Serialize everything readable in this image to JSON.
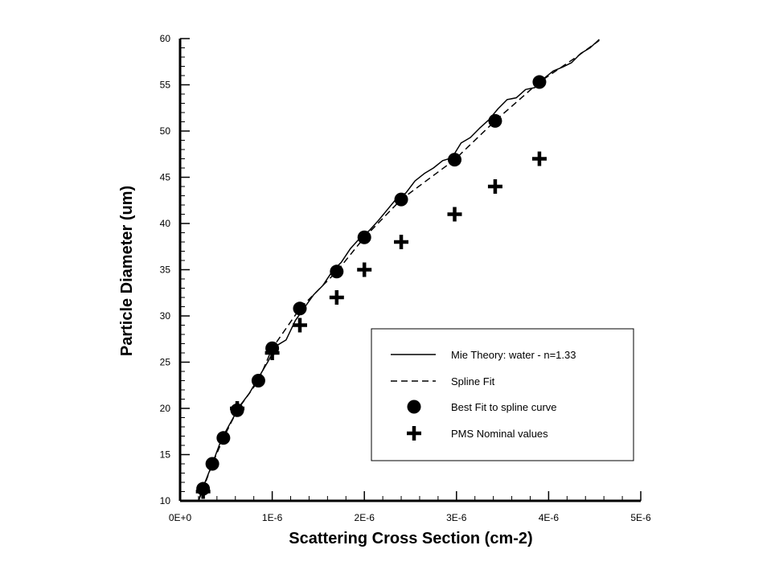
{
  "chart_data": {
    "type": "scatter",
    "xlabel": "Scattering Cross Section (cm-2)",
    "ylabel": "Particle Diameter (um)",
    "xlim": [
      0,
      5e-06
    ],
    "ylim": [
      10,
      60
    ],
    "x_ticks": [
      0,
      1e-06,
      2e-06,
      3e-06,
      4e-06,
      5e-06
    ],
    "x_tick_labels": [
      "0E+0",
      "1E-6",
      "2E-6",
      "3E-6",
      "4E-6",
      "5E-6"
    ],
    "y_ticks": [
      10,
      15,
      20,
      25,
      30,
      35,
      40,
      45,
      50,
      55,
      60
    ],
    "y_tick_labels": [
      "10",
      "15",
      "20",
      "25",
      "30",
      "35",
      "40",
      "45",
      "50",
      "55",
      "60"
    ],
    "grid": false,
    "legend_position": "bottom-right",
    "series": [
      {
        "name": "Mie Theory: water - n=1.33",
        "style": "solid-line",
        "x": [
          2e-07,
          2.5e-07,
          3.5e-07,
          4.5e-07,
          5.5e-07,
          6.5e-07,
          7.5e-07,
          8.5e-07,
          9.5e-07,
          1.05e-06,
          1.15e-06,
          1.25e-06,
          1.35e-06,
          1.45e-06,
          1.55e-06,
          1.65e-06,
          1.75e-06,
          1.85e-06,
          1.95e-06,
          2.05e-06,
          2.15e-06,
          2.25e-06,
          2.35e-06,
          2.45e-06,
          2.55e-06,
          2.65e-06,
          2.75e-06,
          2.85e-06,
          2.95e-06,
          3.05e-06,
          3.15e-06,
          3.25e-06,
          3.35e-06,
          3.45e-06,
          3.55e-06,
          3.65e-06,
          3.75e-06,
          3.85e-06,
          3.95e-06,
          4.05e-06,
          4.15e-06,
          4.25e-06,
          4.35e-06,
          4.45e-06,
          4.55e-06
        ],
        "y": [
          10.0,
          11.5,
          14.0,
          16.7,
          18.5,
          20.3,
          21.6,
          23.3,
          25.0,
          26.8,
          27.4,
          29.5,
          30.9,
          32.3,
          33.3,
          34.8,
          35.8,
          37.3,
          38.4,
          39.2,
          40.3,
          41.5,
          42.7,
          43.3,
          44.6,
          45.4,
          46.0,
          46.8,
          47.1,
          48.7,
          49.3,
          50.3,
          51.2,
          52.4,
          53.4,
          53.6,
          54.5,
          54.7,
          55.7,
          56.5,
          56.9,
          57.4,
          58.4,
          59.0,
          59.9
        ]
      },
      {
        "name": "Spline Fit",
        "style": "dashed-line",
        "x": [
          2e-07,
          2.5e-07,
          3.5e-07,
          4.7e-07,
          6.2e-07,
          8.5e-07,
          1e-06,
          1.3e-06,
          1.7e-06,
          2e-06,
          2.4e-06,
          2.98e-06,
          3.42e-06,
          3.9e-06,
          4.3e-06,
          4.55e-06
        ],
        "y": [
          10.0,
          11.3,
          14.0,
          16.8,
          19.8,
          23.0,
          26.5,
          30.8,
          34.8,
          38.5,
          42.6,
          46.9,
          51.1,
          55.3,
          58.0,
          59.8
        ]
      },
      {
        "name": "Best Fit to spline curve",
        "style": "filled-circle",
        "x": [
          2.5e-07,
          3.5e-07,
          4.7e-07,
          6.2e-07,
          8.5e-07,
          1e-06,
          1.3e-06,
          1.7e-06,
          2e-06,
          2.4e-06,
          2.98e-06,
          3.42e-06,
          3.9e-06
        ],
        "y": [
          11.3,
          14.0,
          16.8,
          19.8,
          23.0,
          26.5,
          30.8,
          34.8,
          38.5,
          42.6,
          46.9,
          51.1,
          55.3
        ]
      },
      {
        "name": "PMS Nominal values",
        "style": "plus",
        "x": [
          2.5e-07,
          6.2e-07,
          1e-06,
          1.3e-06,
          1.7e-06,
          2e-06,
          2.4e-06,
          2.98e-06,
          3.42e-06,
          3.9e-06
        ],
        "y": [
          11.0,
          20.0,
          26.0,
          29.0,
          32.0,
          35.0,
          38.0,
          41.0,
          44.0,
          47.0
        ]
      }
    ]
  }
}
